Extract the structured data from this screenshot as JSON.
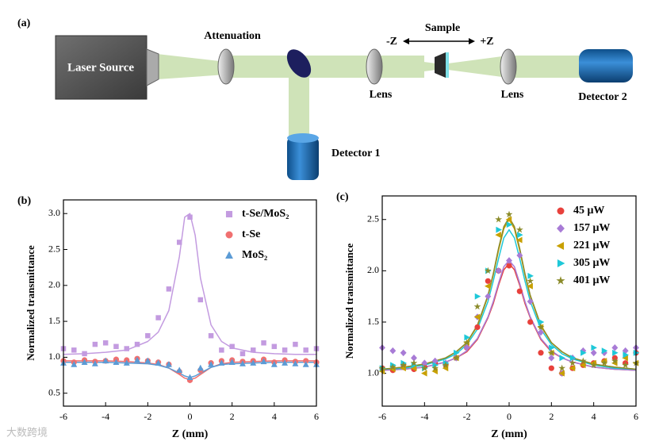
{
  "diagram": {
    "panel_label": "(a)",
    "laser_source": "Laser Source",
    "attenuation": "Attenuation",
    "sample": "Sample",
    "minus_z": "-Z",
    "plus_z": "+Z",
    "lens_labels": [
      "Lens",
      "Lens"
    ],
    "detector_1": "Detector 1",
    "detector_2": "Detector 2"
  },
  "watermark": "大数跨境",
  "chart_data": [
    {
      "type": "scatter",
      "panel_label": "(b)",
      "x_label": "Z (mm)",
      "y_label": "Normalized transmittance",
      "xlim": [
        -6,
        6
      ],
      "xticks": [
        -6,
        -4,
        -2,
        0,
        2,
        4,
        6
      ],
      "ylim": [
        0.32,
        3.19
      ],
      "yticks": [
        {
          "value": 0.5,
          "label": "0.5"
        },
        {
          "value": 1,
          "label": "1.0"
        },
        {
          "value": 1.5,
          "label": "1.5"
        },
        {
          "value": 2,
          "label": "2.0"
        },
        {
          "value": 2.5,
          "label": "2.5"
        },
        {
          "value": 3,
          "label": "3.0"
        }
      ],
      "legend": "upper right",
      "x": [
        -6,
        -5.5,
        -5,
        -4.5,
        -4,
        -3.5,
        -3,
        -2.5,
        -2,
        -1.5,
        -1,
        -0.5,
        0,
        0.5,
        1,
        1.5,
        2,
        2.5,
        3,
        3.5,
        4,
        4.5,
        5,
        5.5,
        6
      ],
      "series": [
        {
          "name": "t-Se/MoS₂",
          "color": "#c39be0",
          "marker": "square",
          "values": [
            1.12,
            1.1,
            1.05,
            1.18,
            1.2,
            1.15,
            1.12,
            1.18,
            1.3,
            1.55,
            1.95,
            2.6,
            2.95,
            1.8,
            1.3,
            1.1,
            1.15,
            1.05,
            1.1,
            1.2,
            1.15,
            1.1,
            1.18,
            1.1,
            1.12
          ]
        },
        {
          "name": "t-Se",
          "color": "#f07070",
          "marker": "circle",
          "values": [
            0.95,
            0.93,
            0.96,
            0.94,
            0.95,
            0.97,
            0.96,
            0.98,
            0.95,
            0.93,
            0.9,
            0.8,
            0.68,
            0.82,
            0.92,
            0.95,
            0.96,
            0.94,
            0.95,
            0.97,
            0.93,
            0.96,
            0.94,
            0.95,
            0.93
          ]
        },
        {
          "name": "MoS₂",
          "color": "#5b9bd5",
          "marker": "triangle-up",
          "values": [
            0.92,
            0.9,
            0.93,
            0.91,
            0.95,
            0.93,
            0.92,
            0.96,
            0.95,
            0.92,
            0.9,
            0.82,
            0.72,
            0.85,
            0.9,
            0.92,
            0.93,
            0.91,
            0.92,
            0.94,
            0.9,
            0.92,
            0.91,
            0.9,
            0.9
          ]
        }
      ],
      "fit_x": [
        -6,
        -5,
        -4,
        -3,
        -2,
        -1.5,
        -1,
        -0.5,
        -0.25,
        0,
        0.25,
        0.5,
        1,
        1.5,
        2,
        3,
        4,
        5,
        6
      ],
      "fits": [
        {
          "color": "#c39be0",
          "values": [
            1.04,
            1.05,
            1.07,
            1.1,
            1.22,
            1.35,
            1.65,
            2.4,
            2.95,
            3.0,
            2.7,
            2.1,
            1.45,
            1.22,
            1.13,
            1.07,
            1.05,
            1.04,
            1.04
          ]
        },
        {
          "color": "#f07070",
          "values": [
            0.95,
            0.95,
            0.95,
            0.94,
            0.92,
            0.9,
            0.85,
            0.76,
            0.71,
            0.69,
            0.71,
            0.76,
            0.86,
            0.91,
            0.93,
            0.94,
            0.95,
            0.95,
            0.95
          ]
        },
        {
          "color": "#5b9bd5",
          "values": [
            0.93,
            0.93,
            0.93,
            0.92,
            0.91,
            0.89,
            0.85,
            0.78,
            0.74,
            0.72,
            0.74,
            0.78,
            0.86,
            0.9,
            0.91,
            0.92,
            0.93,
            0.93,
            0.93
          ]
        }
      ]
    },
    {
      "type": "scatter",
      "panel_label": "(c)",
      "x_label": "Z (mm)",
      "y_label": "Normalized transmittance",
      "xlim": [
        -6,
        6
      ],
      "xticks": [
        -6,
        -4,
        -2,
        0,
        2,
        4,
        6
      ],
      "ylim": [
        0.68,
        2.73
      ],
      "yticks": [
        {
          "value": 1,
          "label": "1.0"
        },
        {
          "value": 1.5,
          "label": "1.5"
        },
        {
          "value": 2,
          "label": "2.0"
        },
        {
          "value": 2.5,
          "label": "2.5"
        }
      ],
      "legend": "upper right",
      "x": [
        -6,
        -5.5,
        -5,
        -4.5,
        -4,
        -3.5,
        -3,
        -2.5,
        -2,
        -1.5,
        -1,
        -0.5,
        0,
        0.5,
        1,
        1.5,
        2,
        2.5,
        3,
        3.5,
        4,
        4.5,
        5,
        5.5,
        6
      ],
      "series": [
        {
          "name": "45 μW",
          "color": "#e8413c",
          "marker": "circle",
          "values": [
            1.05,
            1.03,
            1.08,
            1.04,
            1.06,
            1.1,
            1.08,
            1.15,
            1.25,
            1.45,
            1.9,
            2.0,
            2.05,
            1.8,
            1.5,
            1.2,
            1.05,
            1.0,
            1.05,
            1.08,
            1.1,
            1.12,
            1.15,
            1.1,
            1.2
          ]
        },
        {
          "name": "157 μW",
          "color": "#a87bd6",
          "marker": "diamond",
          "values": [
            1.25,
            1.22,
            1.2,
            1.15,
            1.1,
            1.12,
            1.1,
            1.15,
            1.25,
            1.55,
            1.75,
            2.0,
            2.1,
            2.15,
            1.7,
            1.4,
            1.15,
            1.0,
            1.15,
            1.22,
            1.2,
            1.2,
            1.25,
            1.22,
            1.25
          ]
        },
        {
          "name": "221 μW",
          "color": "#c8a000",
          "marker": "triangle-left",
          "values": [
            1.02,
            1.04,
            1.05,
            1.05,
            1.0,
            1.02,
            1.05,
            1.15,
            1.3,
            1.55,
            1.85,
            2.35,
            2.5,
            2.3,
            1.85,
            1.45,
            1.2,
            1.0,
            1.05,
            1.08,
            1.1,
            1.12,
            1.1,
            1.15,
            1.1
          ]
        },
        {
          "name": "305 μW",
          "color": "#1ec8d8",
          "marker": "triangle-right",
          "values": [
            1.05,
            1.08,
            1.1,
            1.08,
            1.05,
            1.08,
            1.1,
            1.2,
            1.35,
            1.75,
            2.0,
            2.4,
            2.45,
            2.35,
            1.95,
            1.5,
            1.25,
            1.15,
            1.15,
            1.2,
            1.25,
            1.22,
            1.2,
            1.18,
            1.2
          ]
        },
        {
          "name": "401 μW",
          "color": "#8b8b2a",
          "marker": "star",
          "values": [
            1.05,
            1.06,
            1.08,
            1.1,
            1.05,
            1.05,
            1.08,
            1.15,
            1.3,
            1.65,
            2.0,
            2.5,
            2.55,
            2.4,
            1.9,
            1.45,
            1.2,
            1.05,
            1.1,
            1.12,
            1.08,
            1.1,
            1.12,
            1.08,
            1.1
          ]
        }
      ],
      "fit_x": [
        -6,
        -5,
        -4,
        -3,
        -2.5,
        -2,
        -1.5,
        -1,
        -0.75,
        -0.5,
        -0.25,
        0,
        0.25,
        0.5,
        0.75,
        1,
        1.5,
        2,
        2.5,
        3,
        4,
        5,
        6
      ],
      "fits": [
        {
          "color": "#e8413c",
          "values": [
            1.03,
            1.04,
            1.06,
            1.11,
            1.15,
            1.21,
            1.33,
            1.54,
            1.68,
            1.86,
            2.01,
            2.07,
            2.01,
            1.86,
            1.68,
            1.54,
            1.33,
            1.21,
            1.15,
            1.11,
            1.06,
            1.04,
            1.03
          ]
        },
        {
          "color": "#a87bd6",
          "values": [
            1.03,
            1.04,
            1.06,
            1.11,
            1.15,
            1.22,
            1.34,
            1.55,
            1.7,
            1.88,
            2.04,
            2.1,
            2.04,
            1.88,
            1.7,
            1.55,
            1.34,
            1.22,
            1.15,
            1.11,
            1.06,
            1.04,
            1.03
          ]
        },
        {
          "color": "#c8a000",
          "values": [
            1.04,
            1.06,
            1.09,
            1.15,
            1.21,
            1.3,
            1.46,
            1.75,
            1.96,
            2.2,
            2.41,
            2.5,
            2.41,
            2.2,
            1.96,
            1.75,
            1.46,
            1.3,
            1.21,
            1.15,
            1.09,
            1.06,
            1.04
          ]
        },
        {
          "color": "#1ec8d8",
          "values": [
            1.04,
            1.05,
            1.08,
            1.14,
            1.19,
            1.28,
            1.43,
            1.7,
            1.9,
            2.12,
            2.32,
            2.4,
            2.32,
            2.12,
            1.9,
            1.7,
            1.43,
            1.28,
            1.19,
            1.14,
            1.08,
            1.05,
            1.04
          ]
        },
        {
          "color": "#8b8b2a",
          "values": [
            1.04,
            1.06,
            1.09,
            1.15,
            1.21,
            1.3,
            1.47,
            1.76,
            1.97,
            2.22,
            2.43,
            2.52,
            2.43,
            2.22,
            1.97,
            1.76,
            1.47,
            1.3,
            1.21,
            1.15,
            1.09,
            1.06,
            1.04
          ]
        }
      ]
    }
  ]
}
